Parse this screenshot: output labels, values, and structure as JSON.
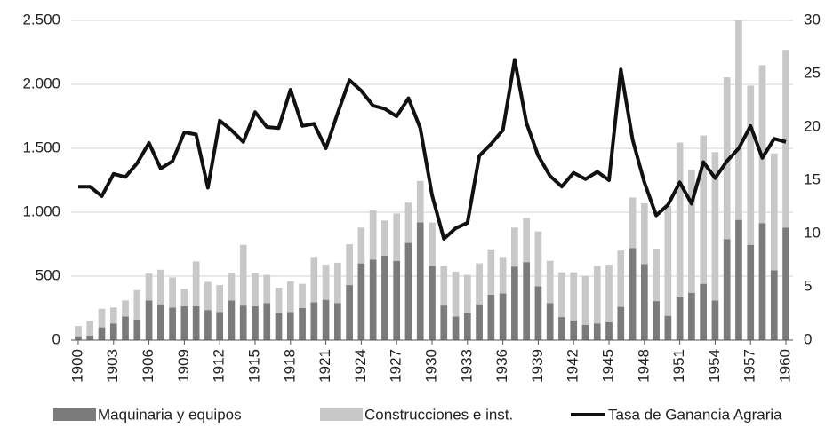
{
  "chart_data": {
    "type": "bar",
    "x": [
      1900,
      1901,
      1902,
      1903,
      1904,
      1905,
      1906,
      1907,
      1908,
      1909,
      1910,
      1911,
      1912,
      1913,
      1914,
      1915,
      1916,
      1917,
      1918,
      1919,
      1920,
      1921,
      1922,
      1923,
      1924,
      1925,
      1926,
      1927,
      1928,
      1929,
      1930,
      1931,
      1932,
      1933,
      1934,
      1935,
      1936,
      1937,
      1938,
      1939,
      1940,
      1941,
      1942,
      1943,
      1944,
      1945,
      1946,
      1947,
      1948,
      1949,
      1950,
      1951,
      1952,
      1953,
      1954,
      1955,
      1956,
      1957,
      1958,
      1959,
      1960
    ],
    "xlim": [
      1899.4,
      1960.6
    ],
    "xticks": [
      1900,
      1903,
      1906,
      1909,
      1912,
      1915,
      1918,
      1921,
      1924,
      1927,
      1930,
      1933,
      1936,
      1939,
      1942,
      1945,
      1948,
      1951,
      1954,
      1957,
      1960
    ],
    "ylim": [
      0,
      2500
    ],
    "yticks": [
      0,
      500,
      {
        "value": 1000,
        "label": "1.000"
      },
      {
        "value": 1500,
        "label": "1.500"
      },
      {
        "value": 2000,
        "label": "2.000"
      },
      {
        "value": 2500,
        "label": "2.500"
      }
    ],
    "y2lim": [
      0,
      30
    ],
    "y2ticks": [
      0,
      5,
      10,
      15,
      20,
      25,
      30
    ],
    "grid": true,
    "legend": "bottom",
    "series": [
      {
        "name": "Maquinaria y equipos",
        "type": "bar",
        "color": "#7b7b7b",
        "values": [
          30,
          35,
          100,
          130,
          185,
          160,
          310,
          280,
          255,
          265,
          265,
          235,
          220,
          310,
          270,
          265,
          290,
          210,
          220,
          250,
          295,
          315,
          290,
          430,
          600,
          630,
          660,
          620,
          760,
          920,
          580,
          270,
          185,
          210,
          280,
          355,
          365,
          575,
          610,
          420,
          290,
          180,
          155,
          120,
          130,
          140,
          260,
          720,
          595,
          305,
          190,
          335,
          370,
          440,
          310,
          790,
          940,
          745,
          915,
          545,
          880
        ]
      },
      {
        "name": "Construcciones e inst.",
        "type": "bar",
        "color": "#c8c8c8",
        "values": [
          80,
          115,
          145,
          125,
          125,
          230,
          210,
          270,
          235,
          135,
          350,
          220,
          210,
          210,
          475,
          260,
          220,
          200,
          240,
          190,
          355,
          275,
          315,
          320,
          280,
          390,
          275,
          370,
          315,
          325,
          340,
          310,
          350,
          300,
          320,
          355,
          285,
          305,
          345,
          430,
          330,
          350,
          375,
          380,
          450,
          450,
          440,
          395,
          475,
          410,
          860,
          1210,
          960,
          1160,
          1160,
          1265,
          1560,
          1245,
          1235,
          915,
          1390
        ]
      },
      {
        "name": "Tasa de Ganancia Agraria",
        "type": "line",
        "axis": "y2",
        "color": "#111111",
        "values": [
          14.4,
          14.4,
          13.5,
          15.6,
          15.3,
          16.6,
          18.5,
          16.1,
          16.8,
          19.5,
          19.3,
          14.3,
          20.6,
          19.7,
          18.6,
          21.4,
          20.0,
          19.9,
          23.5,
          20.1,
          20.3,
          18.0,
          21.3,
          24.4,
          23.4,
          22.0,
          21.7,
          21.0,
          22.7,
          19.9,
          13.6,
          9.5,
          10.5,
          11.0,
          17.3,
          18.4,
          19.7,
          26.3,
          20.4,
          17.3,
          15.4,
          14.4,
          15.7,
          15.1,
          15.8,
          15.0,
          25.4,
          18.8,
          14.8,
          11.7,
          12.7,
          14.8,
          12.8,
          16.7,
          15.2,
          16.8,
          18.0,
          20.1,
          17.1,
          18.9,
          18.6
        ]
      }
    ]
  }
}
